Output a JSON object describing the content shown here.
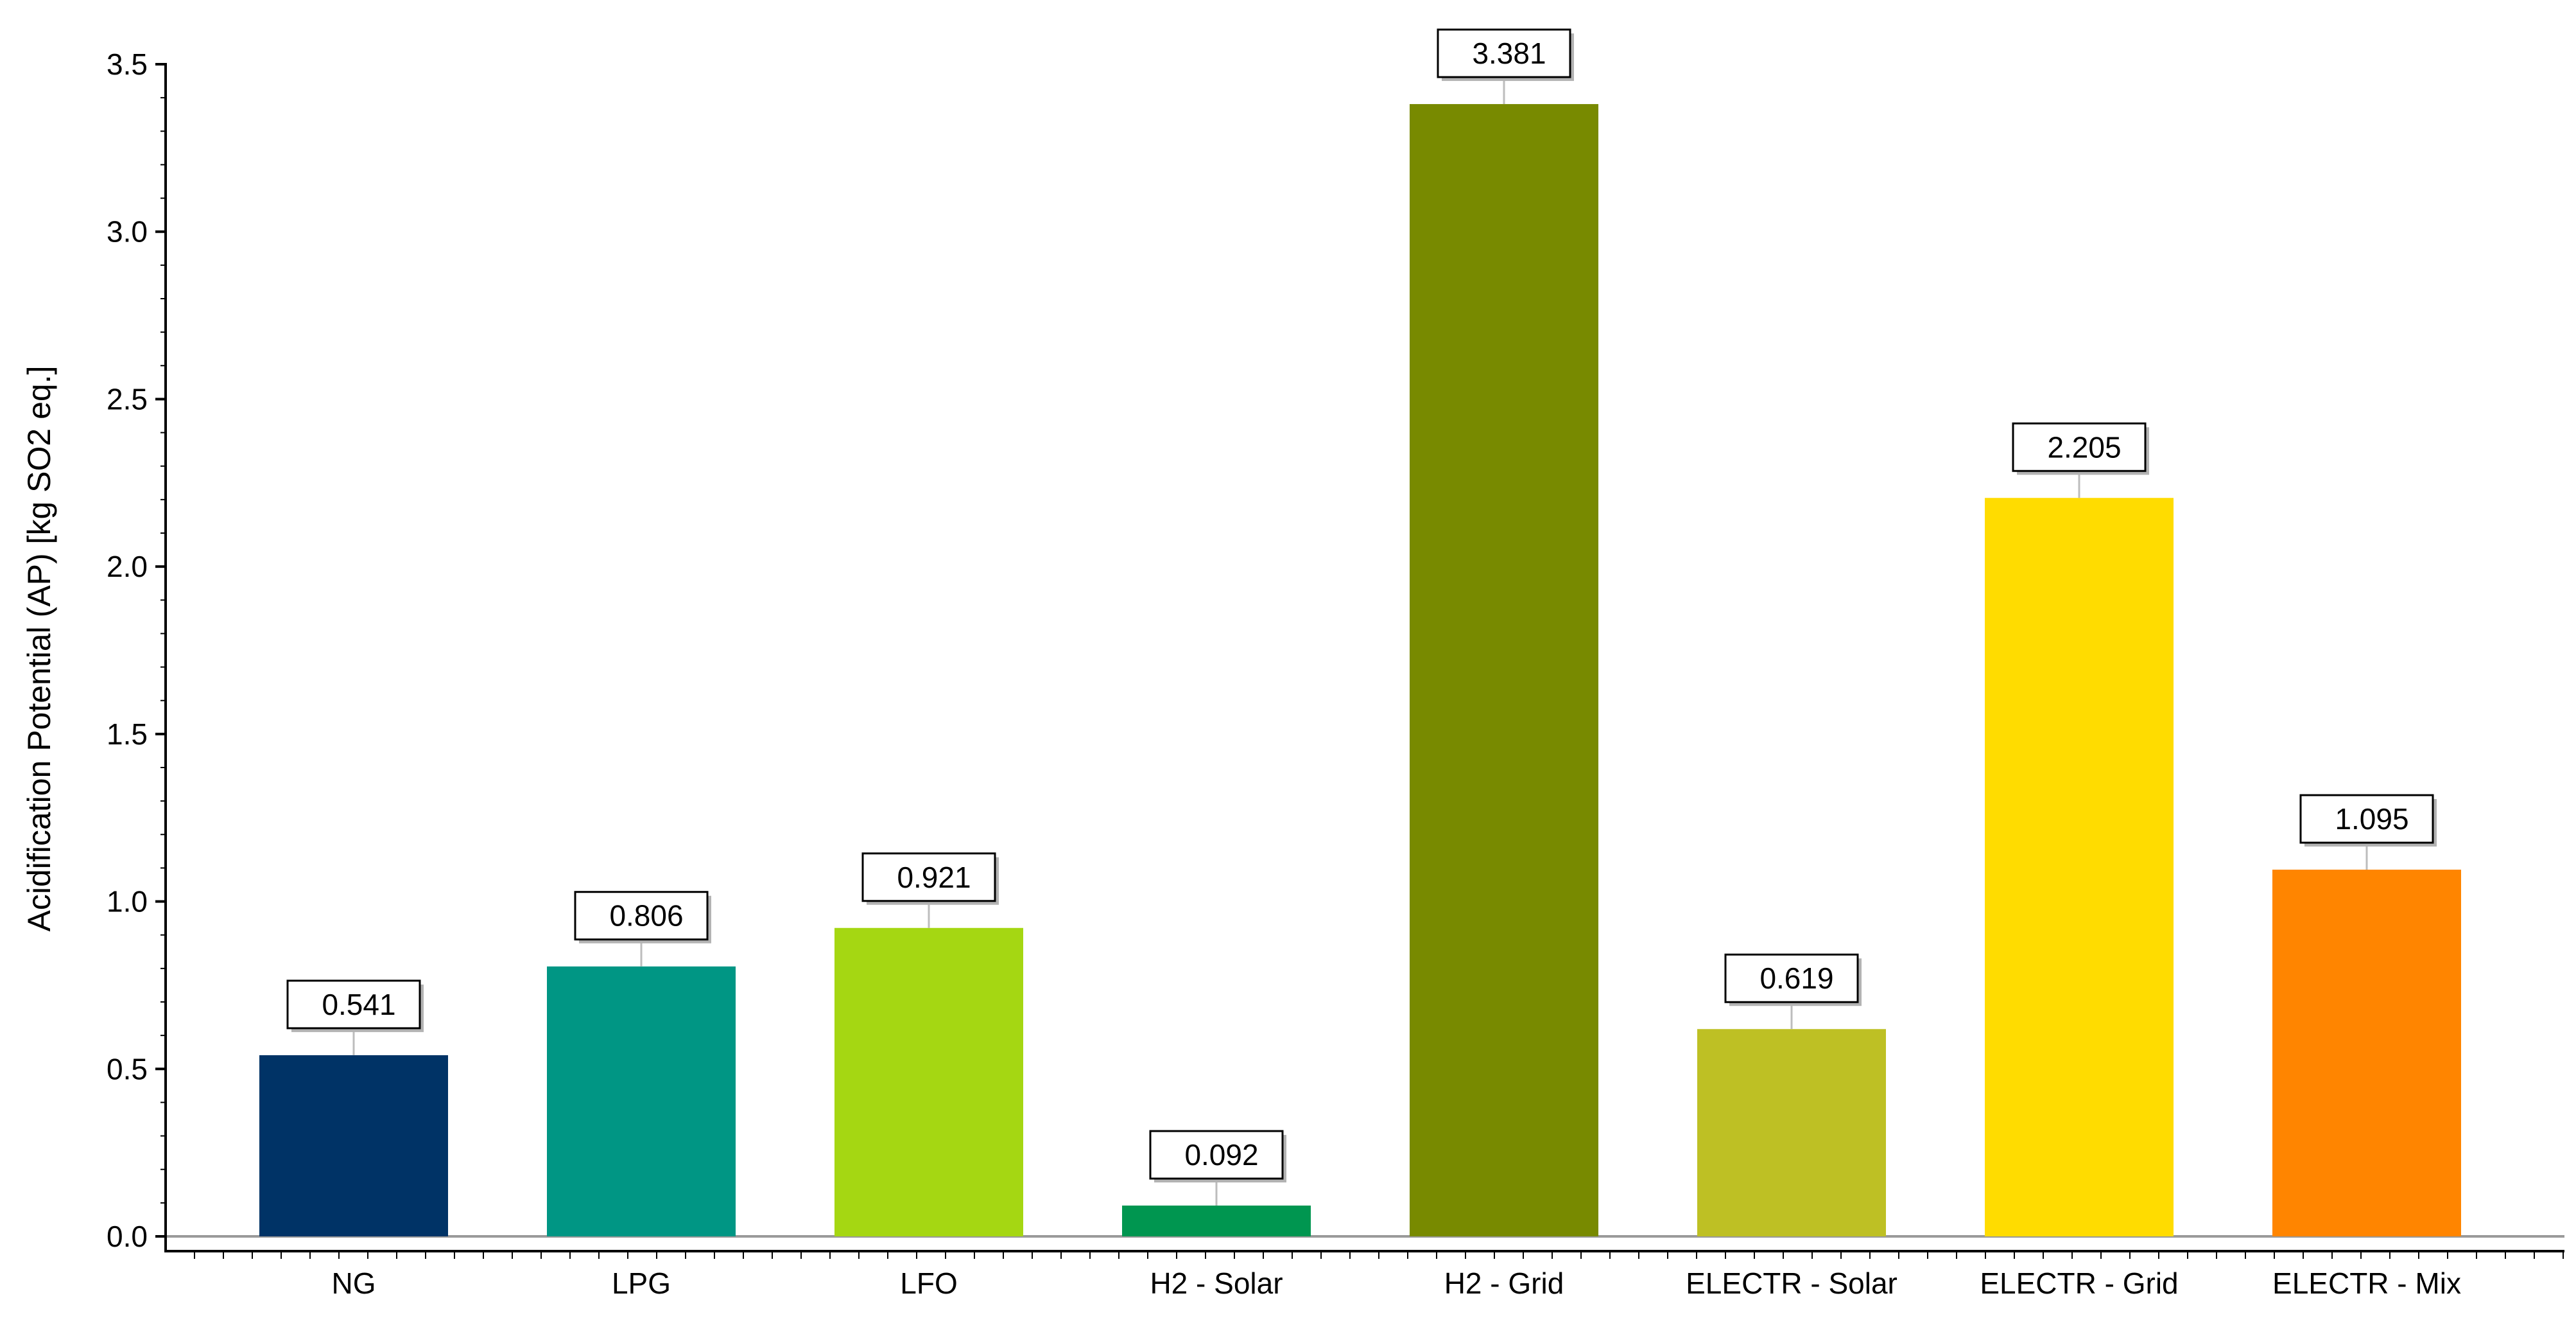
{
  "chart_data": {
    "type": "bar",
    "title": "",
    "xlabel": "",
    "ylabel": "Acidification Potential (AP) [kg SO2 eq.]",
    "ylim": [
      0,
      3.5
    ],
    "y_ticks": [
      "0.0",
      "0.5",
      "1.0",
      "1.5",
      "2.0",
      "2.5",
      "3.0",
      "3.5"
    ],
    "grid": false,
    "legend": "none",
    "categories": [
      "NG",
      "LPG",
      "LFO",
      "H2 - Solar",
      "H2 - Grid",
      "ELECTR - Solar",
      "ELECTR - Grid",
      "ELECTR - Mix"
    ],
    "values": [
      0.541,
      0.806,
      0.921,
      0.092,
      3.381,
      0.619,
      2.205,
      1.095
    ],
    "data_labels": [
      "0.541",
      "0.806",
      "0.921",
      "0.092",
      "3.381",
      "0.619",
      "2.205",
      "1.095"
    ],
    "colors": [
      "#003366",
      "#009684",
      "#A5D712",
      "#009650",
      "#788A00",
      "#BEC024",
      "#FFDC00",
      "#FF8500"
    ]
  }
}
